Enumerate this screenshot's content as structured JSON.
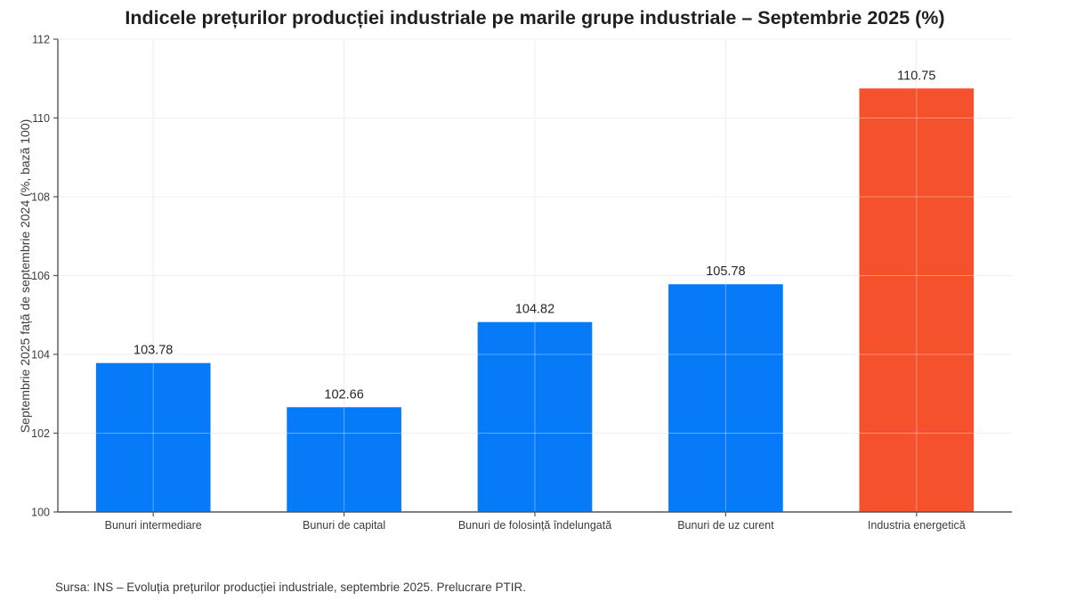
{
  "chart_data": {
    "type": "bar",
    "title": "Indicele prețurilor producției industriale pe marile grupe industriale – Septembrie 2025 (%)",
    "ylabel": "Septembrie 2025 față de septembrie 2024 (%, bază 100)",
    "xlabel": "",
    "categories": [
      "Bunuri intermediare",
      "Bunuri de capital",
      "Bunuri de folosință îndelungată",
      "Bunuri de uz curent",
      "Industria energetică"
    ],
    "values": [
      103.78,
      102.66,
      104.82,
      105.78,
      110.75
    ],
    "value_labels": [
      "103.78",
      "102.66",
      "104.82",
      "105.78",
      "110.75"
    ],
    "bar_colors": [
      "#077bf7",
      "#077bf7",
      "#077bf7",
      "#077bf7",
      "#f4512c"
    ],
    "ylim": [
      100,
      112
    ],
    "yticks": [
      100,
      102,
      104,
      106,
      108,
      110,
      112
    ],
    "grid": true,
    "legend_position": "none",
    "bar_width_ratio": 0.6
  },
  "footer": {
    "source": "Sursa: INS – Evoluția prețurilor producției industriale, septembrie 2025. Prelucrare PTIR."
  },
  "colors": {
    "background": "#ffffff",
    "bar_blue": "#077bf7",
    "bar_orange": "#f4512c",
    "grid": "#e7e7e7",
    "grid_over_bar": "#ffffff",
    "spine": "#555555",
    "title_text": "#1f1f1f",
    "tick_text": "#3c3c3c",
    "value_text": "#262626",
    "source_text": "#3a3a3a"
  }
}
